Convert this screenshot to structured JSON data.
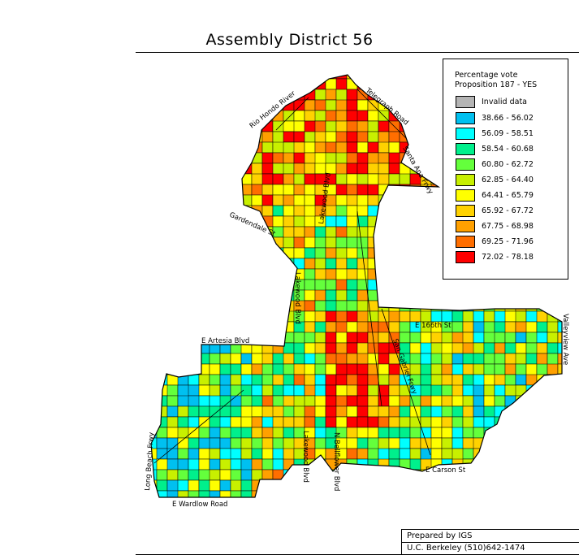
{
  "map": {
    "title": "Assembly District 56",
    "legend": {
      "title_line1": "Percentage vote",
      "title_line2": "Proposition 187 - YES",
      "items": [
        {
          "label": "Invalid data",
          "color": "#b4b4b4"
        },
        {
          "label": "38.66 - 56.02",
          "color": "#00c0f0"
        },
        {
          "label": "56.09 - 58.51",
          "color": "#00ffff"
        },
        {
          "label": "58.54 - 60.68",
          "color": "#00f08c"
        },
        {
          "label": "60.80 - 62.72",
          "color": "#64ff3c"
        },
        {
          "label": "62.85 - 64.40",
          "color": "#c8f000"
        },
        {
          "label": "64.41 - 65.79",
          "color": "#ffff00"
        },
        {
          "label": "65.92 - 67.72",
          "color": "#ffd200"
        },
        {
          "label": "67.75 - 68.98",
          "color": "#ffa000"
        },
        {
          "label": "69.25 - 71.96",
          "color": "#ff6e00"
        },
        {
          "label": "72.02 - 78.18",
          "color": "#ff0000"
        }
      ]
    },
    "roads": {
      "rio_hondo": "Rio Hondo River",
      "telegraph": "Telegraph Road",
      "santa_ana": "Santa Ana Frwy",
      "lakewood_blvd_1": "Lakewood Blvd",
      "gardendale": "Gardendale St",
      "lakewood_blvd_2": "Lakewood Blvd",
      "e_artesia": "E Artesia Blvd",
      "e_166th": "E 166th St",
      "san_gabriel": "San Gabriel Frwy",
      "valleyview": "Valleyview Ave",
      "long_beach": "Long Beach Frwy",
      "lakewood_blvd_3": "Lakewood Blvd",
      "n_bellflower": "N Bellflower Blvd",
      "e_carson": "E Carson St",
      "e_wardlow": "E Wardlow Road"
    },
    "credit": {
      "line1": "Prepared by IGS",
      "line2": "U.C. Berkeley (510)642-1474"
    }
  }
}
